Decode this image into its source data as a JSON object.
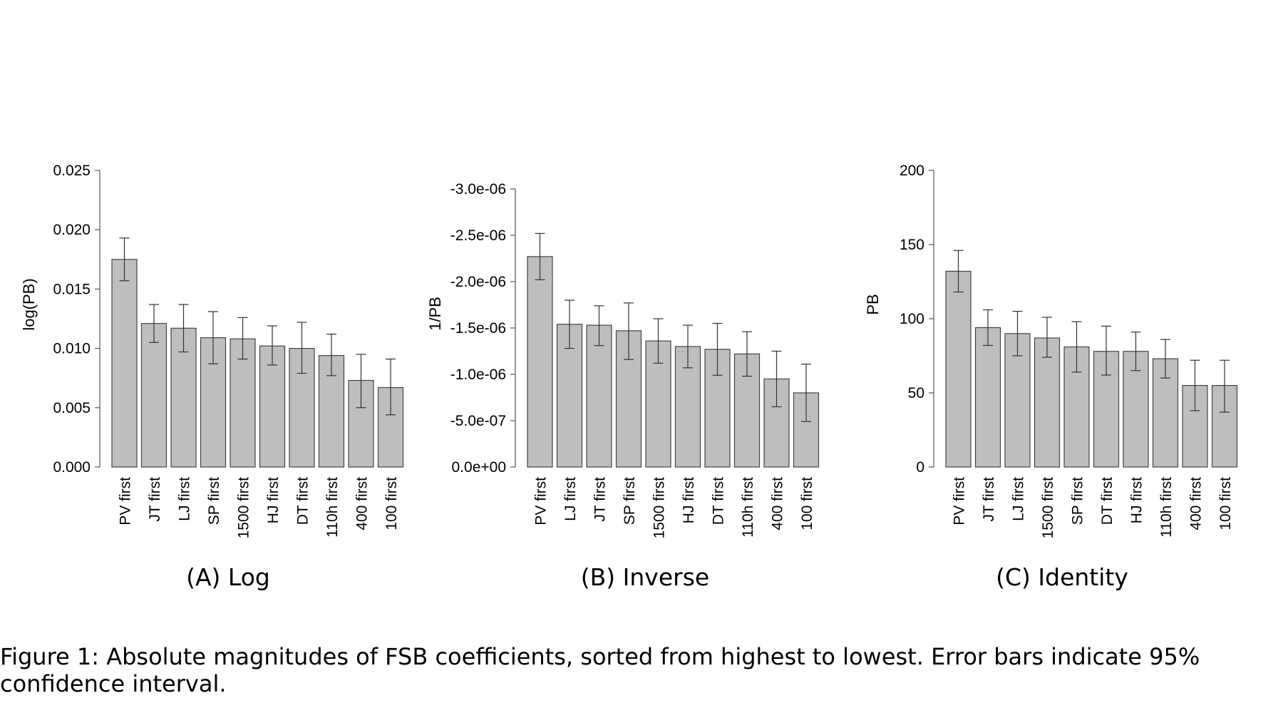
{
  "chart_data": [
    {
      "type": "bar",
      "subcaption": "(A) Log",
      "ylabel": "log(PB)",
      "categories": [
        "PV first",
        "JT first",
        "LJ first",
        "SP first",
        "1500 first",
        "HJ first",
        "DT first",
        "110h first",
        "400 first",
        "100 first"
      ],
      "values": [
        0.0175,
        0.0121,
        0.0117,
        0.0109,
        0.0108,
        0.0102,
        0.01,
        0.0094,
        0.0073,
        0.0067
      ],
      "err_low": [
        0.0157,
        0.0105,
        0.0097,
        0.0087,
        0.0091,
        0.0086,
        0.0079,
        0.0077,
        0.005,
        0.0044
      ],
      "err_high": [
        0.0193,
        0.0137,
        0.0137,
        0.0131,
        0.0126,
        0.0119,
        0.0122,
        0.0112,
        0.0095,
        0.0091
      ],
      "ylim": [
        0,
        0.025
      ],
      "yticks": [
        0,
        0.005,
        0.01,
        0.015,
        0.02,
        0.025
      ],
      "ytick_labels": [
        "0.000",
        "0.005",
        "0.010",
        "0.015",
        "0.020",
        "0.025"
      ],
      "grid": false
    },
    {
      "type": "bar",
      "subcaption": "(B) Inverse",
      "ylabel": "1/PB",
      "categories": [
        "PV first",
        "LJ first",
        "JT first",
        "SP first",
        "1500 first",
        "HJ first",
        "DT first",
        "110h first",
        "400 first",
        "100 first"
      ],
      "values": [
        -2.27e-06,
        -1.54e-06,
        -1.53e-06,
        -1.47e-06,
        -1.36e-06,
        -1.3e-06,
        -1.27e-06,
        -1.22e-06,
        -9.5e-07,
        -8e-07
      ],
      "err_low": [
        -2.02e-06,
        -1.28e-06,
        -1.31e-06,
        -1.16e-06,
        -1.12e-06,
        -1.07e-06,
        -9.9e-07,
        -9.8e-07,
        -6.5e-07,
        -4.9e-07
      ],
      "err_high": [
        -2.52e-06,
        -1.8e-06,
        -1.74e-06,
        -1.77e-06,
        -1.6e-06,
        -1.53e-06,
        -1.55e-06,
        -1.46e-06,
        -1.25e-06,
        -1.11e-06
      ],
      "ylim": [
        0,
        -3e-06
      ],
      "yticks": [
        0,
        -5e-07,
        -1e-06,
        -1.5e-06,
        -2e-06,
        -2.5e-06,
        -3e-06
      ],
      "ytick_labels": [
        "0.0e+00",
        "-5.0e-07",
        "-1.0e-06",
        "-1.5e-06",
        "-2.0e-06",
        "-2.5e-06",
        "-3.0e-06"
      ],
      "grid": false
    },
    {
      "type": "bar",
      "subcaption": "(C) Identity",
      "ylabel": "PB",
      "categories": [
        "PV first",
        "JT first",
        "LJ first",
        "1500 first",
        "SP first",
        "DT first",
        "HJ first",
        "110h first",
        "400 first",
        "100 first"
      ],
      "values": [
        132,
        94,
        90,
        87,
        81,
        78,
        78,
        73,
        55,
        55
      ],
      "err_low": [
        118,
        82,
        75,
        74,
        64,
        62,
        65,
        60,
        38,
        37
      ],
      "err_high": [
        146,
        106,
        105,
        101,
        98,
        95,
        91,
        86,
        72,
        72
      ],
      "ylim": [
        0,
        200
      ],
      "yticks": [
        0,
        50,
        100,
        150,
        200
      ],
      "ytick_labels": [
        "0",
        "50",
        "100",
        "150",
        "200"
      ],
      "grid": false
    }
  ],
  "figure_caption": "Figure 1: Absolute magnitudes of FSB coefficients, sorted from highest to lowest. Error bars indicate 95% confidence interval.",
  "colors": {
    "bar_fill": "#bebebe",
    "bar_stroke": "#444444",
    "axis": "#555555"
  }
}
